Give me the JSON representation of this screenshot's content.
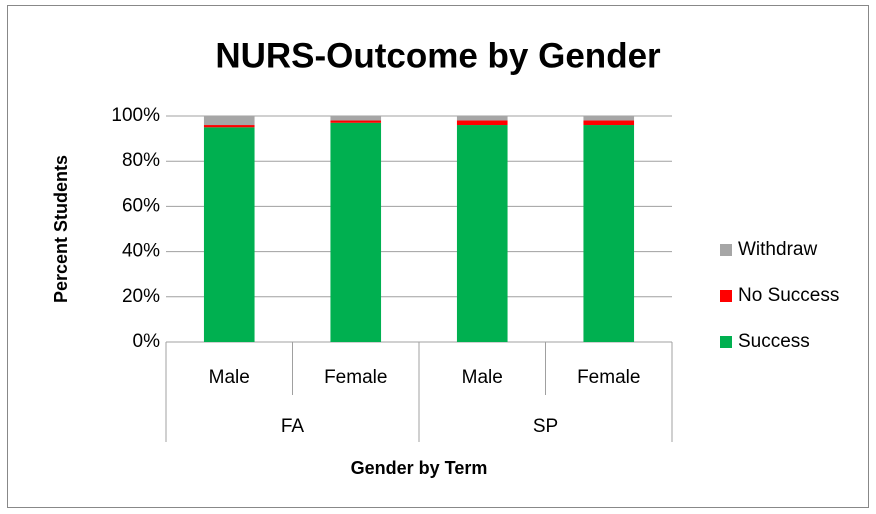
{
  "chart_data": {
    "type": "stacked_bar",
    "title": "NURS-Outcome by Gender",
    "x_label": "Gender by Term",
    "y_label": "Percent Students",
    "groups": [
      {
        "name": "FA",
        "categories": [
          "Male",
          "Female"
        ]
      },
      {
        "name": "SP",
        "categories": [
          "Male",
          "Female"
        ]
      }
    ],
    "series": [
      {
        "name": "Success",
        "color": "#00b050",
        "values": [
          95,
          97,
          96,
          96
        ]
      },
      {
        "name": "No Success",
        "color": "#ff0000",
        "values": [
          1,
          1,
          2,
          2
        ]
      },
      {
        "name": "Withdraw",
        "color": "#a6a6a6",
        "values": [
          4,
          2,
          2,
          2
        ]
      }
    ],
    "ylim": [
      0,
      100
    ],
    "yticks": [
      {
        "value": 0,
        "label": "0%"
      },
      {
        "value": 20,
        "label": "20%"
      },
      {
        "value": 40,
        "label": "40%"
      },
      {
        "value": 60,
        "label": "60%"
      },
      {
        "value": 80,
        "label": "80%"
      },
      {
        "value": 100,
        "label": "100%"
      }
    ],
    "grid": true,
    "legend": "right"
  }
}
